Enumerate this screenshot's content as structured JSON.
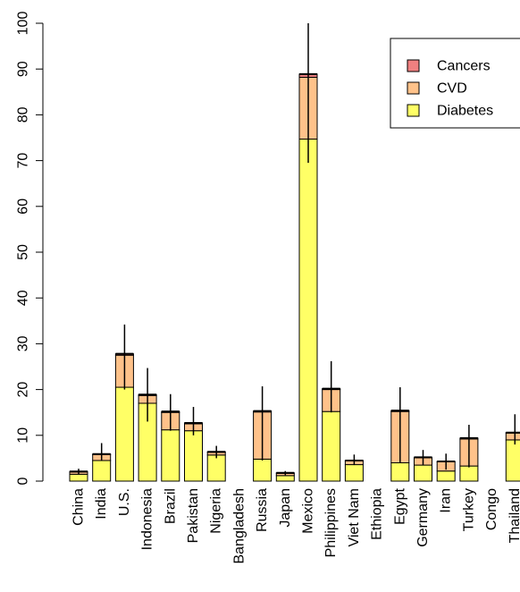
{
  "chart_data": {
    "type": "bar",
    "stacked": true,
    "categories": [
      "China",
      "India",
      "U.S.",
      "Indonesia",
      "Brazil",
      "Pakistan",
      "Nigeria",
      "Bangladesh",
      "Russia",
      "Japan",
      "Mexico",
      "Philippines",
      "Viet Nam",
      "Ethiopia",
      "Egypt",
      "Germany",
      "Iran",
      "Turkey",
      "Congo",
      "Thailand"
    ],
    "series": [
      {
        "name": "Diabetes",
        "color": "#ffff66",
        "values": [
          1.5,
          4.5,
          20.5,
          17.0,
          11.2,
          11.0,
          5.7,
          0,
          4.8,
          1.2,
          74.7,
          15.2,
          3.6,
          0,
          4.0,
          3.5,
          2.2,
          3.3,
          0,
          9.0
        ]
      },
      {
        "name": "CVD",
        "color": "#ffc28a",
        "values": [
          0.5,
          1.3,
          7.0,
          1.7,
          3.8,
          1.5,
          0.6,
          0,
          10.3,
          0.5,
          13.5,
          4.8,
          0.8,
          0,
          11.2,
          1.6,
          2.0,
          5.9,
          0,
          1.5
        ]
      },
      {
        "name": "Cancers",
        "color": "#f08080",
        "values": [
          0.1,
          0.1,
          0.3,
          0.2,
          0.2,
          0.2,
          0.1,
          0,
          0.2,
          0.1,
          0.7,
          0.2,
          0.1,
          0,
          0.2,
          0.1,
          0.1,
          0.2,
          0,
          0.1
        ]
      }
    ],
    "error_bars": {
      "center": [
        2.0,
        5.8,
        27.5,
        18.5,
        15.0,
        12.5,
        6.3,
        0,
        15.0,
        1.7,
        88.5,
        20.0,
        4.5,
        0,
        15.0,
        5.2,
        4.3,
        9.2,
        0,
        10.5
      ],
      "low": [
        1.5,
        4.5,
        20.0,
        13.0,
        11.0,
        10.0,
        5.0,
        0,
        4.5,
        1.3,
        69.5,
        15.0,
        3.5,
        0,
        4.0,
        3.5,
        2.5,
        3.0,
        0,
        8.0
      ],
      "high": [
        2.7,
        8.3,
        34.2,
        24.7,
        19.0,
        16.2,
        7.7,
        0,
        20.7,
        2.2,
        100.0,
        26.2,
        5.8,
        0,
        20.5,
        6.8,
        6.0,
        12.3,
        0,
        14.6
      ]
    },
    "ylim": [
      0,
      100
    ],
    "yticks": [
      0,
      10,
      20,
      30,
      40,
      50,
      60,
      70,
      80,
      90,
      100
    ],
    "legend_position": "top-right",
    "legend_order": [
      "Cancers",
      "CVD",
      "Diabetes"
    ]
  }
}
